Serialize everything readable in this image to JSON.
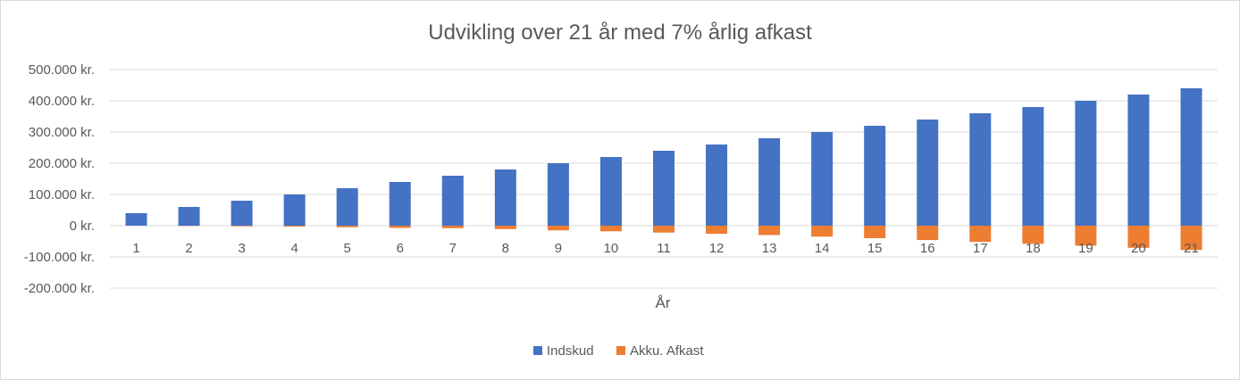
{
  "chart_data": {
    "type": "bar",
    "stacked": true,
    "title": "Udvikling over 21 år med 7% årlig afkast",
    "xlabel": "År",
    "ylabel": "",
    "categories": [
      "1",
      "2",
      "3",
      "4",
      "5",
      "6",
      "7",
      "8",
      "9",
      "10",
      "11",
      "12",
      "13",
      "14",
      "15",
      "16",
      "17",
      "18",
      "19",
      "20",
      "21"
    ],
    "series": [
      {
        "name": "Indskud",
        "color": "#4472c4",
        "values": [
          40000,
          60000,
          80000,
          100000,
          120000,
          140000,
          160000,
          180000,
          200000,
          220000,
          240000,
          260000,
          280000,
          300000,
          320000,
          340000,
          360000,
          380000,
          400000,
          420000,
          440000
        ]
      },
      {
        "name": "Akku. Afkast",
        "color": "#ed7d31",
        "values": [
          0,
          -1000,
          -2000,
          -3000,
          -5000,
          -7000,
          -8000,
          -11000,
          -15000,
          -18000,
          -22000,
          -26000,
          -30000,
          -35000,
          -40000,
          -46000,
          -52000,
          -58000,
          -64000,
          -71000,
          -78000
        ]
      }
    ],
    "ylim": [
      -200000,
      500000
    ],
    "yticks": [
      500000,
      400000,
      300000,
      200000,
      100000,
      0,
      -100000,
      -200000
    ],
    "ytick_labels": [
      "500.000 kr.",
      "400.000 kr.",
      "300.000 kr.",
      "200.000 kr.",
      "100.000 kr.",
      "0 kr.",
      "-100.000 kr.",
      "-200.000 kr."
    ],
    "grid": true,
    "legend": "bottom"
  }
}
